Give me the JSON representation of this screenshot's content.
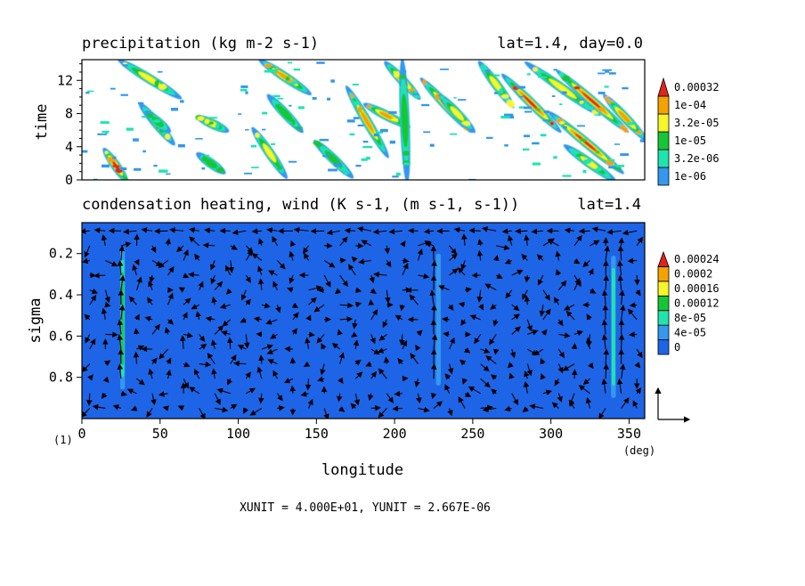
{
  "figure": {
    "marker": "(1)",
    "units_note": "XUNIT = 4.000E+01, YUNIT = 2.667E-06"
  },
  "chart_data": [
    {
      "type": "heatmap",
      "title": "precipitation (kg m-2 s-1)",
      "subtitle": "lat=1.4, day=0.0",
      "ylabel": "time",
      "xlabel": "",
      "xlim": [
        0,
        360
      ],
      "ylim": [
        0,
        14.5
      ],
      "yticks": [
        0,
        4,
        8,
        12
      ],
      "colorbar": {
        "levels": [
          "1e-06",
          "3.2e-06",
          "1e-05",
          "3.2e-05",
          "1e-04",
          "0.00032"
        ],
        "colors": [
          "#3398ee",
          "#1ee5b0",
          "#16c636",
          "#f6f62a",
          "#f4a200",
          "#e0241c"
        ]
      },
      "streaks": [
        {
          "x0": 15,
          "t0": 3.5,
          "x1": 28,
          "t1": 0,
          "peak": 5
        },
        {
          "x0": 25,
          "t0": 14.3,
          "x1": 62,
          "t1": 10,
          "peak": 3
        },
        {
          "x0": 38,
          "t0": 9,
          "x1": 58,
          "t1": 4.5,
          "peak": 3
        },
        {
          "x0": 42,
          "t0": 8,
          "x1": 55,
          "t1": 6,
          "peak": 2
        },
        {
          "x0": 75,
          "t0": 7.5,
          "x1": 92,
          "t1": 6,
          "peak": 3
        },
        {
          "x0": 110,
          "t0": 6,
          "x1": 130,
          "t1": 0.5,
          "peak": 3
        },
        {
          "x0": 75,
          "t0": 3,
          "x1": 90,
          "t1": 1,
          "peak": 2
        },
        {
          "x0": 115,
          "t0": 14.3,
          "x1": 145,
          "t1": 10.5,
          "peak": 4
        },
        {
          "x0": 120,
          "t0": 10,
          "x1": 140,
          "t1": 6,
          "peak": 2
        },
        {
          "x0": 150,
          "t0": 4.5,
          "x1": 172,
          "t1": 0.5,
          "peak": 2
        },
        {
          "x0": 170,
          "t0": 11,
          "x1": 195,
          "t1": 3,
          "peak": 4
        },
        {
          "x0": 182,
          "t0": 9,
          "x1": 208,
          "t1": 6.5,
          "peak": 4
        },
        {
          "x0": 195,
          "t0": 14,
          "x1": 215,
          "t1": 10,
          "peak": 4
        },
        {
          "x0": 205,
          "t0": 14.3,
          "x1": 208,
          "t1": 0,
          "peak": 2
        },
        {
          "x0": 218,
          "t0": 12,
          "x1": 248,
          "t1": 6,
          "peak": 4
        },
        {
          "x0": 230,
          "t0": 10,
          "x1": 250,
          "t1": 6,
          "peak": 3
        },
        {
          "x0": 255,
          "t0": 14,
          "x1": 275,
          "t1": 9,
          "peak": 3
        },
        {
          "x0": 270,
          "t0": 12.5,
          "x1": 305,
          "t1": 6,
          "peak": 5
        },
        {
          "x0": 285,
          "t0": 14,
          "x1": 330,
          "t1": 8,
          "peak": 3
        },
        {
          "x0": 305,
          "t0": 13,
          "x1": 348,
          "t1": 6,
          "peak": 5
        },
        {
          "x0": 300,
          "t0": 8,
          "x1": 345,
          "t1": 1,
          "peak": 5
        },
        {
          "x0": 310,
          "t0": 4,
          "x1": 340,
          "t1": 0,
          "peak": 3
        },
        {
          "x0": 335,
          "t0": 10,
          "x1": 360,
          "t1": 5,
          "peak": 4
        }
      ]
    },
    {
      "type": "heatmap",
      "title": "condensation heating, wind (K s-1, (m s-1, s-1))",
      "subtitle": "lat=1.4",
      "ylabel": "sigma",
      "xlabel": "longitude",
      "xunit": "(deg)",
      "xlim": [
        0,
        360
      ],
      "ylim": [
        1.0,
        0.05
      ],
      "xticks": [
        0,
        50,
        100,
        150,
        200,
        250,
        300,
        350
      ],
      "yticks": [
        0.2,
        0.4,
        0.6,
        0.8
      ],
      "background_color": "#1e64e6",
      "colorbar": {
        "levels": [
          "0",
          "4e-05",
          "8e-05",
          "0.00012",
          "0.00016",
          "0.0002",
          "0.00024"
        ],
        "colors": [
          "#1e64e6",
          "#3398ee",
          "#1ee5b0",
          "#16c636",
          "#f6f62a",
          "#f4a200",
          "#e0241c"
        ]
      },
      "heating_columns": [
        {
          "lon": 26,
          "sigma_top": 0.17,
          "sigma_bottom": 0.86,
          "level": 3
        },
        {
          "lon": 228,
          "sigma_top": 0.2,
          "sigma_bottom": 0.84,
          "level": 1
        },
        {
          "lon": 340,
          "sigma_top": 0.21,
          "sigma_bottom": 0.9,
          "level": 2
        }
      ]
    }
  ]
}
